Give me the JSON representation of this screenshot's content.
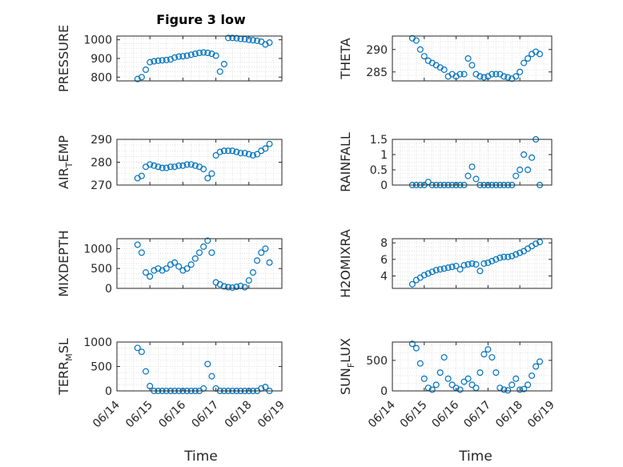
{
  "figure": {
    "title": "Figure 3 low"
  },
  "chart_data": [
    {
      "type": "scatter",
      "ylabel": "PRESSURE",
      "xlim": [
        "06/14",
        "06/19"
      ],
      "ylim": [
        780,
        1020
      ],
      "yticks": [
        800,
        900,
        1000
      ],
      "grid": true,
      "x": [
        "06/14 15:00",
        "06/14 18:00",
        "06/14 21:00",
        "06/15 00:00",
        "06/15 03:00",
        "06/15 06:00",
        "06/15 09:00",
        "06/15 12:00",
        "06/15 15:00",
        "06/15 18:00",
        "06/15 21:00",
        "06/16 00:00",
        "06/16 03:00",
        "06/16 06:00",
        "06/16 09:00",
        "06/16 12:00",
        "06/16 15:00",
        "06/16 18:00",
        "06/16 21:00",
        "06/17 00:00",
        "06/17 03:00",
        "06/17 06:00",
        "06/17 09:00",
        "06/17 12:00",
        "06/17 15:00",
        "06/17 18:00",
        "06/17 21:00",
        "06/18 00:00",
        "06/18 03:00",
        "06/18 06:00",
        "06/18 09:00",
        "06/18 12:00",
        "06/18 15:00"
      ],
      "y": [
        790,
        800,
        840,
        880,
        885,
        888,
        890,
        892,
        895,
        905,
        910,
        912,
        915,
        920,
        925,
        930,
        932,
        930,
        925,
        915,
        830,
        870,
        1010,
        1010,
        1008,
        1005,
        1003,
        1000,
        998,
        995,
        990,
        975,
        985
      ]
    },
    {
      "type": "scatter",
      "ylabel": "THETA",
      "xlim": [
        "06/14",
        "06/19"
      ],
      "ylim": [
        283,
        293
      ],
      "yticks": [
        285,
        290
      ],
      "grid": true,
      "x": [
        "06/14 15:00",
        "06/14 18:00",
        "06/14 21:00",
        "06/15 00:00",
        "06/15 03:00",
        "06/15 06:00",
        "06/15 09:00",
        "06/15 12:00",
        "06/15 15:00",
        "06/15 18:00",
        "06/15 21:00",
        "06/16 00:00",
        "06/16 03:00",
        "06/16 06:00",
        "06/16 09:00",
        "06/16 12:00",
        "06/16 15:00",
        "06/16 18:00",
        "06/16 21:00",
        "06/17 00:00",
        "06/17 03:00",
        "06/17 06:00",
        "06/17 09:00",
        "06/17 12:00",
        "06/17 15:00",
        "06/17 18:00",
        "06/17 21:00",
        "06/18 00:00",
        "06/18 03:00",
        "06/18 06:00",
        "06/18 09:00",
        "06/18 12:00",
        "06/18 15:00"
      ],
      "y": [
        292.5,
        292,
        290,
        288.5,
        287.5,
        287,
        286.5,
        286,
        285.5,
        284,
        284.5,
        284,
        284.5,
        284.5,
        288,
        286.5,
        284.5,
        284,
        283.8,
        284,
        284.5,
        284.5,
        284.5,
        284,
        283.8,
        283.5,
        284,
        285,
        287,
        288,
        289,
        289.5,
        289
      ]
    },
    {
      "type": "scatter",
      "ylabel": "AIR_TEMP",
      "ylabel_main": "AIR",
      "ylabel_sub": "T",
      "ylabel_rest": "EMP",
      "xlim": [
        "06/14",
        "06/19"
      ],
      "ylim": [
        270,
        290
      ],
      "yticks": [
        270,
        280,
        290
      ],
      "grid": true,
      "x": [
        "06/14 15:00",
        "06/14 18:00",
        "06/14 21:00",
        "06/15 00:00",
        "06/15 03:00",
        "06/15 06:00",
        "06/15 09:00",
        "06/15 12:00",
        "06/15 15:00",
        "06/15 18:00",
        "06/15 21:00",
        "06/16 00:00",
        "06/16 03:00",
        "06/16 06:00",
        "06/16 09:00",
        "06/16 12:00",
        "06/16 15:00",
        "06/16 18:00",
        "06/16 21:00",
        "06/17 00:00",
        "06/17 03:00",
        "06/17 06:00",
        "06/17 09:00",
        "06/17 12:00",
        "06/17 15:00",
        "06/17 18:00",
        "06/17 21:00",
        "06/18 00:00",
        "06/18 03:00",
        "06/18 06:00",
        "06/18 09:00",
        "06/18 12:00",
        "06/18 15:00"
      ],
      "y": [
        273,
        274,
        278,
        279,
        278.5,
        278,
        277.5,
        277.5,
        278,
        278,
        278.5,
        278.5,
        279,
        279,
        278.5,
        278,
        277,
        273,
        275,
        283,
        284.5,
        285,
        285,
        285,
        284.5,
        284,
        284,
        283.5,
        283,
        283.5,
        285,
        286,
        288
      ]
    },
    {
      "type": "scatter",
      "ylabel": "RAINFALL",
      "xlim": [
        "06/14",
        "06/19"
      ],
      "ylim": [
        0,
        1.5
      ],
      "yticks": [
        0,
        0.5,
        1,
        1.5
      ],
      "ytick_labels": [
        "0",
        "0.5",
        "1",
        "1.5"
      ],
      "grid": true,
      "x": [
        "06/14 15:00",
        "06/14 18:00",
        "06/14 21:00",
        "06/15 00:00",
        "06/15 03:00",
        "06/15 06:00",
        "06/15 09:00",
        "06/15 12:00",
        "06/15 15:00",
        "06/15 18:00",
        "06/15 21:00",
        "06/16 00:00",
        "06/16 03:00",
        "06/16 06:00",
        "06/16 09:00",
        "06/16 12:00",
        "06/16 15:00",
        "06/16 18:00",
        "06/16 21:00",
        "06/17 00:00",
        "06/17 03:00",
        "06/17 06:00",
        "06/17 09:00",
        "06/17 12:00",
        "06/17 15:00",
        "06/17 18:00",
        "06/17 21:00",
        "06/18 00:00",
        "06/18 03:00",
        "06/18 06:00",
        "06/18 09:00",
        "06/18 12:00",
        "06/18 15:00"
      ],
      "y": [
        0,
        0,
        0,
        0,
        0.1,
        0,
        0,
        0,
        0,
        0,
        0,
        0,
        0,
        0,
        0.3,
        0.6,
        0.2,
        0,
        0,
        0,
        0,
        0,
        0,
        0,
        0,
        0,
        0.3,
        0.5,
        1,
        0.5,
        0.9,
        1.5,
        0
      ]
    },
    {
      "type": "scatter",
      "ylabel": "MIXDEPTH",
      "xlim": [
        "06/14",
        "06/19"
      ],
      "ylim": [
        0,
        1250
      ],
      "yticks": [
        0,
        500,
        1000
      ],
      "grid": true,
      "x": [
        "06/14 15:00",
        "06/14 18:00",
        "06/14 21:00",
        "06/15 00:00",
        "06/15 03:00",
        "06/15 06:00",
        "06/15 09:00",
        "06/15 12:00",
        "06/15 15:00",
        "06/15 18:00",
        "06/15 21:00",
        "06/16 00:00",
        "06/16 03:00",
        "06/16 06:00",
        "06/16 09:00",
        "06/16 12:00",
        "06/16 15:00",
        "06/16 18:00",
        "06/16 21:00",
        "06/17 00:00",
        "06/17 03:00",
        "06/17 06:00",
        "06/17 09:00",
        "06/17 12:00",
        "06/17 15:00",
        "06/17 18:00",
        "06/17 21:00",
        "06/18 00:00",
        "06/18 03:00",
        "06/18 06:00",
        "06/18 09:00",
        "06/18 12:00",
        "06/18 15:00"
      ],
      "y": [
        1100,
        900,
        400,
        300,
        450,
        500,
        450,
        500,
        600,
        650,
        550,
        450,
        500,
        600,
        750,
        900,
        1050,
        1200,
        900,
        150,
        100,
        50,
        30,
        20,
        40,
        60,
        30,
        200,
        400,
        700,
        900,
        1000,
        650
      ]
    },
    {
      "type": "scatter",
      "ylabel": "H2OMIXRA",
      "xlim": [
        "06/14",
        "06/19"
      ],
      "ylim": [
        2.5,
        8.5
      ],
      "yticks": [
        4,
        6,
        8
      ],
      "grid": true,
      "x": [
        "06/14 15:00",
        "06/14 18:00",
        "06/14 21:00",
        "06/15 00:00",
        "06/15 03:00",
        "06/15 06:00",
        "06/15 09:00",
        "06/15 12:00",
        "06/15 15:00",
        "06/15 18:00",
        "06/15 21:00",
        "06/16 00:00",
        "06/16 03:00",
        "06/16 06:00",
        "06/16 09:00",
        "06/16 12:00",
        "06/16 15:00",
        "06/16 18:00",
        "06/16 21:00",
        "06/17 00:00",
        "06/17 03:00",
        "06/17 06:00",
        "06/17 09:00",
        "06/17 12:00",
        "06/17 15:00",
        "06/17 18:00",
        "06/17 21:00",
        "06/18 00:00",
        "06/18 03:00",
        "06/18 06:00",
        "06/18 09:00",
        "06/18 12:00",
        "06/18 15:00"
      ],
      "y": [
        3,
        3.5,
        3.8,
        4.1,
        4.3,
        4.5,
        4.7,
        4.8,
        4.9,
        5,
        5.1,
        5.2,
        4.8,
        5.3,
        5.4,
        5.5,
        5.4,
        4.6,
        5.5,
        5.6,
        5.8,
        6,
        6.2,
        6.3,
        6.3,
        6.4,
        6.6,
        6.8,
        7,
        7.3,
        7.6,
        7.9,
        8.1
      ]
    },
    {
      "type": "scatter",
      "ylabel": "TERR_MSL",
      "ylabel_main": "TERR",
      "ylabel_sub": "M",
      "ylabel_rest": "SL",
      "xlim": [
        "06/14",
        "06/19"
      ],
      "ylim": [
        0,
        1000
      ],
      "yticks": [
        0,
        500,
        1000
      ],
      "grid": true,
      "x": [
        "06/14 15:00",
        "06/14 18:00",
        "06/14 21:00",
        "06/15 00:00",
        "06/15 03:00",
        "06/15 06:00",
        "06/15 09:00",
        "06/15 12:00",
        "06/15 15:00",
        "06/15 18:00",
        "06/15 21:00",
        "06/16 00:00",
        "06/16 03:00",
        "06/16 06:00",
        "06/16 09:00",
        "06/16 12:00",
        "06/16 15:00",
        "06/16 18:00",
        "06/16 21:00",
        "06/17 00:00",
        "06/17 03:00",
        "06/17 06:00",
        "06/17 09:00",
        "06/17 12:00",
        "06/17 15:00",
        "06/17 18:00",
        "06/17 21:00",
        "06/18 00:00",
        "06/18 03:00",
        "06/18 06:00",
        "06/18 09:00",
        "06/18 12:00",
        "06/18 15:00"
      ],
      "y": [
        880,
        800,
        400,
        100,
        0,
        0,
        0,
        0,
        0,
        0,
        0,
        0,
        0,
        0,
        0,
        0,
        50,
        550,
        300,
        50,
        0,
        0,
        0,
        0,
        0,
        0,
        0,
        0,
        0,
        0,
        50,
        80,
        0
      ]
    },
    {
      "type": "scatter",
      "ylabel": "SUN_FLUX",
      "ylabel_main": "SUN",
      "ylabel_sub": "F",
      "ylabel_rest": "LUX",
      "xlim": [
        "06/14",
        "06/19"
      ],
      "ylim": [
        0,
        800
      ],
      "yticks": [
        0,
        500
      ],
      "grid": true,
      "x": [
        "06/14 15:00",
        "06/14 18:00",
        "06/14 21:00",
        "06/15 00:00",
        "06/15 03:00",
        "06/15 06:00",
        "06/15 09:00",
        "06/15 12:00",
        "06/15 15:00",
        "06/15 18:00",
        "06/15 21:00",
        "06/16 00:00",
        "06/16 03:00",
        "06/16 06:00",
        "06/16 09:00",
        "06/16 12:00",
        "06/16 15:00",
        "06/16 18:00",
        "06/16 21:00",
        "06/17 00:00",
        "06/17 03:00",
        "06/17 06:00",
        "06/17 09:00",
        "06/17 12:00",
        "06/17 15:00",
        "06/17 18:00",
        "06/17 21:00",
        "06/18 00:00",
        "06/18 03:00",
        "06/18 06:00",
        "06/18 09:00",
        "06/18 12:00",
        "06/18 15:00"
      ],
      "y": [
        770,
        700,
        450,
        200,
        50,
        20,
        100,
        300,
        550,
        200,
        100,
        50,
        20,
        150,
        200,
        100,
        50,
        300,
        600,
        680,
        550,
        300,
        50,
        20,
        10,
        100,
        200,
        20,
        30,
        100,
        250,
        400,
        480
      ]
    }
  ],
  "xaxis": {
    "ticks": [
      "06/14",
      "06/15",
      "06/16",
      "06/17",
      "06/18",
      "06/19"
    ],
    "label": "Time"
  },
  "style": {
    "marker_color": "#0072BD",
    "grid_color": "#d9d9d9"
  }
}
